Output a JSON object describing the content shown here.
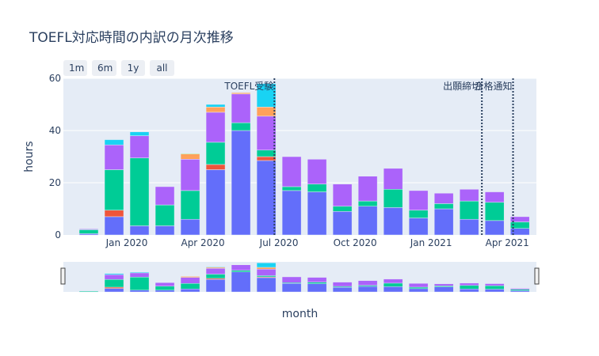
{
  "title": "TOEFL対応時間の内訳の月次推移",
  "range_buttons": [
    "1m",
    "6m",
    "1y",
    "all"
  ],
  "colors": {
    "plot_bg": "#e5ecf6",
    "grid": "#ffffff",
    "event_line": "#2a3f5f"
  },
  "chart_data": {
    "type": "bar",
    "barmode": "stack",
    "xlabel": "month",
    "ylabel": "hours",
    "ylim": [
      0,
      60
    ],
    "y_ticks": [
      0,
      20,
      40,
      60
    ],
    "x_tick_labels": [
      "Jan 2020",
      "Apr 2020",
      "Jul 2020",
      "Oct 2020",
      "Jan 2021",
      "Apr 2021"
    ],
    "x_tick_months": [
      "2020-01",
      "2020-04",
      "2020-07",
      "2020-10",
      "2021-01",
      "2021-04"
    ],
    "categories": [
      "2019-11",
      "2019-12",
      "2020-01",
      "2020-02",
      "2020-03",
      "2020-04",
      "2020-05",
      "2020-06",
      "2020-07",
      "2020-08",
      "2020-09",
      "2020-10",
      "2020-11",
      "2020-12",
      "2021-01",
      "2021-02",
      "2021-03",
      "2021-04"
    ],
    "series": [
      {
        "color": "#636efa",
        "values": [
          0.5,
          7,
          3.5,
          3.5,
          6,
          25,
          40,
          28.5,
          17,
          16.5,
          9,
          11,
          10.5,
          6.5,
          10,
          6,
          5.5,
          2.5
        ]
      },
      {
        "color": "#ef553b",
        "values": [
          0,
          2.5,
          0,
          0,
          0,
          2,
          0,
          1.5,
          0,
          0,
          0,
          0,
          0,
          0,
          0,
          0,
          0,
          0
        ]
      },
      {
        "color": "#00cc96",
        "values": [
          1.5,
          15.5,
          26,
          8,
          11,
          8.5,
          3,
          2.5,
          1.5,
          3,
          2,
          2,
          7,
          3,
          2,
          7,
          7,
          2.5
        ]
      },
      {
        "color": "#ab63fa",
        "values": [
          0.3,
          9.5,
          8.5,
          7,
          12,
          11.5,
          11,
          13,
          11.5,
          9.5,
          8.5,
          9.5,
          8,
          7.5,
          4,
          4.5,
          4,
          2
        ]
      },
      {
        "color": "#ffa15a",
        "values": [
          0,
          0,
          0,
          0,
          2,
          2,
          0.5,
          3.5,
          0,
          0,
          0,
          0,
          0,
          0,
          0,
          0,
          0,
          0
        ]
      },
      {
        "color": "#19d3f3",
        "values": [
          0,
          2,
          1.5,
          0,
          0,
          1,
          0,
          9,
          0,
          0,
          0,
          0,
          0,
          0,
          0,
          0,
          0,
          0
        ]
      },
      {
        "color": "#b6e880",
        "values": [
          0,
          0,
          0,
          0,
          0.3,
          0,
          0,
          0,
          0,
          0,
          0,
          0,
          0,
          0,
          0,
          0,
          0,
          0
        ]
      }
    ],
    "annotations": [
      {
        "text": "TOEFL受験",
        "date": "2020-06-26"
      },
      {
        "text": "出願締切",
        "date": "2021-03-01"
      },
      {
        "text": "合格通知",
        "date": "2021-04-08"
      }
    ]
  }
}
